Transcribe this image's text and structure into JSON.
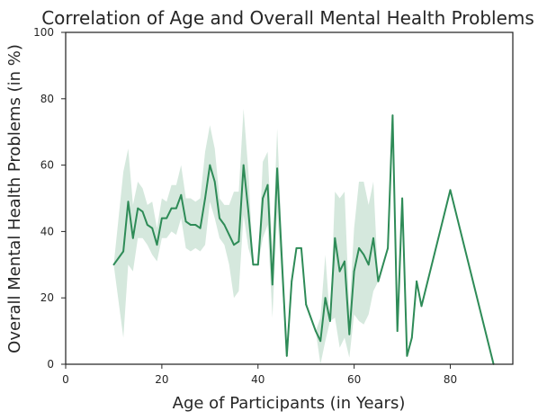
{
  "chart_data": {
    "type": "line",
    "title": "Correlation of Age and Overall Mental Health Problems",
    "xlabel": "Age of Participants (in Years)",
    "ylabel": "Overall Mental Health Problems (in %)",
    "xlim": [
      0,
      93
    ],
    "ylim": [
      0,
      100
    ],
    "x_ticks": [
      0,
      20,
      40,
      60,
      80
    ],
    "y_ticks": [
      0,
      20,
      40,
      60,
      80,
      100
    ],
    "grid": false,
    "legend": "none",
    "colors": {
      "line": "#2e8b57",
      "band": "#2e8b57",
      "axis": "#262626"
    },
    "series": [
      {
        "x": [
          10,
          12,
          13,
          14,
          15,
          16,
          17,
          18,
          19,
          20,
          21,
          22,
          23,
          24,
          25,
          26,
          27,
          28,
          29,
          30,
          31,
          32,
          33,
          34,
          35,
          36,
          37,
          38,
          39,
          40,
          41,
          42,
          43,
          44,
          46,
          47,
          48,
          49,
          50,
          52,
          53,
          54,
          55,
          56,
          57,
          58,
          59,
          60,
          61,
          62,
          63,
          64,
          65,
          67,
          68,
          69,
          70,
          71,
          72,
          73,
          74,
          80,
          89
        ],
        "y": [
          30,
          34,
          49,
          38,
          47,
          46,
          42,
          41,
          36,
          44,
          44,
          47,
          47,
          51,
          43,
          42,
          42,
          41,
          50,
          60,
          55,
          44,
          42,
          39,
          36,
          37,
          60,
          46,
          30,
          30,
          50,
          54,
          24,
          59,
          2.5,
          25,
          35,
          35,
          18,
          10,
          7,
          20,
          13,
          38,
          28,
          31,
          9,
          28,
          35,
          33,
          30,
          38,
          25,
          35,
          75,
          10,
          50,
          2.5,
          8,
          25,
          17.5,
          52.5,
          0
        ],
        "ci_low": [
          30,
          8,
          30,
          28,
          38,
          38,
          36,
          33,
          31,
          38,
          38,
          40,
          39,
          44,
          35,
          34,
          35,
          34,
          36,
          49,
          44,
          38,
          36,
          30,
          20,
          22,
          45,
          35,
          30,
          30,
          38,
          42,
          14,
          46,
          2.5,
          25,
          35,
          35,
          18,
          10,
          0,
          7,
          13,
          14,
          5,
          8,
          2,
          15,
          13,
          12,
          15,
          22,
          25,
          35,
          75,
          10,
          50,
          2.5,
          8,
          25,
          17.5,
          52.5,
          0
        ],
        "ci_high": [
          30,
          58,
          65,
          48,
          55,
          53,
          48,
          49,
          41,
          50,
          49,
          54,
          54,
          60,
          50,
          50,
          49,
          50,
          64,
          72,
          65,
          50,
          48,
          48,
          52,
          52,
          77,
          58,
          30,
          30,
          61,
          64,
          34,
          71,
          2.5,
          25,
          35,
          35,
          18,
          10,
          14,
          33,
          13,
          52,
          50,
          52,
          16,
          41,
          55,
          55,
          48,
          55,
          25,
          35,
          75,
          10,
          50,
          2.5,
          8,
          25,
          17.5,
          52.5,
          0
        ]
      }
    ]
  }
}
